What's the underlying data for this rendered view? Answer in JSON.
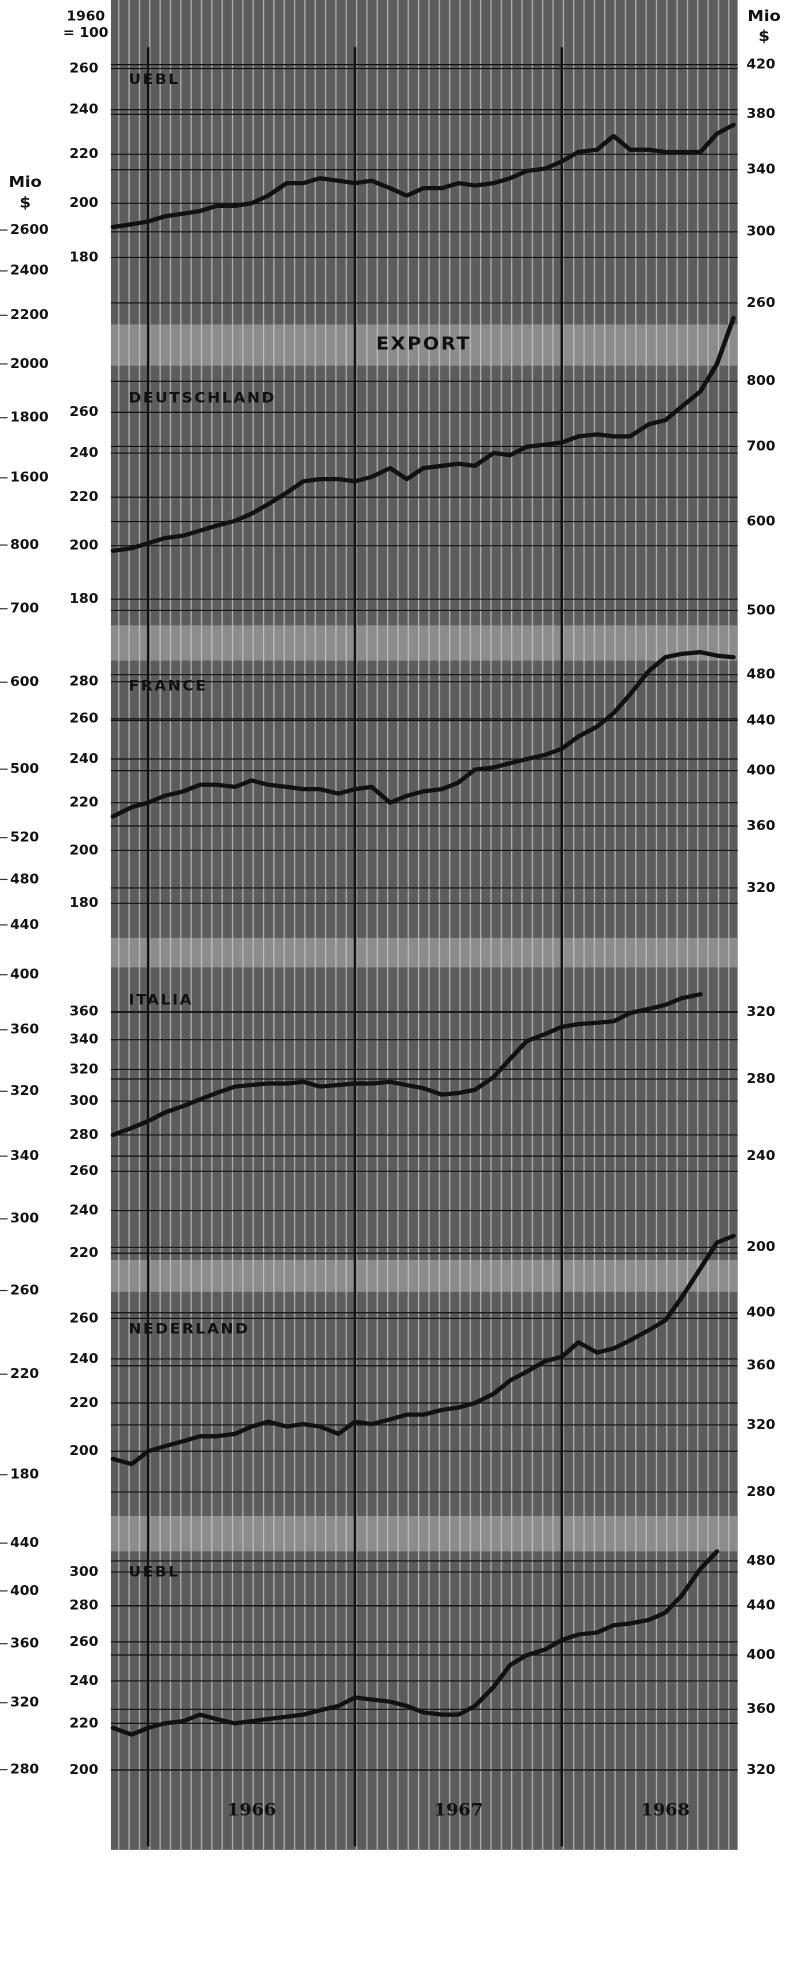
{
  "index_label": [
    "1960",
    "= 100"
  ],
  "right_unit": [
    "Mio",
    "$"
  ],
  "left_unit": [
    "Mio",
    "$"
  ],
  "section_label": "EXPORT",
  "left_axes": [
    {
      "lim": [
        1600,
        2600
      ],
      "ticks": [
        2600,
        2400,
        2200,
        2000,
        1800,
        1600
      ]
    },
    {
      "lim": [
        500,
        800
      ],
      "ticks": [
        800,
        700,
        600,
        500
      ]
    },
    {
      "lim": [
        320,
        520
      ],
      "ticks": [
        520,
        480,
        440,
        400,
        360,
        320
      ]
    },
    {
      "lim": [
        180,
        340
      ],
      "ticks": [
        340,
        300,
        260,
        220,
        180
      ]
    },
    {
      "lim": [
        280,
        440
      ],
      "ticks": [
        440,
        400,
        360,
        320,
        280
      ]
    }
  ],
  "chart_data": [
    {
      "type": "line",
      "title": "UEBL",
      "log_scale": true,
      "color": "#111111",
      "x": [
        1965.83,
        1965.92,
        1966.0,
        1966.08,
        1966.17,
        1966.25,
        1966.33,
        1966.42,
        1966.5,
        1966.58,
        1966.67,
        1966.75,
        1966.83,
        1966.92,
        1967.0,
        1967.08,
        1967.17,
        1967.25,
        1967.33,
        1967.42,
        1967.5,
        1967.58,
        1967.67,
        1967.75,
        1967.83,
        1967.92,
        1968.0,
        1968.08,
        1968.17,
        1968.25,
        1968.33,
        1968.42,
        1968.5,
        1968.58,
        1968.67,
        1968.75,
        1968.83
      ],
      "values": [
        191,
        192,
        193,
        195,
        196,
        197,
        199,
        199,
        200,
        203,
        208,
        208,
        210,
        209,
        208,
        209,
        206,
        203,
        206,
        206,
        208,
        207,
        208,
        210,
        213,
        214,
        217,
        221,
        222,
        228,
        222,
        222,
        221,
        221,
        221,
        229,
        233
      ],
      "xlim": [
        1965.82,
        1968.85
      ],
      "ylim": [
        158,
        271
      ],
      "yticks": [
        260,
        240,
        220,
        200,
        180
      ],
      "y2lim": [
        249,
        435
      ],
      "y2ticks": [
        420,
        380,
        340,
        300,
        260
      ]
    },
    {
      "type": "line",
      "title": "DEUTSCHLAND",
      "log_scale": true,
      "color": "#111111",
      "x": [
        1965.83,
        1965.92,
        1966.0,
        1966.08,
        1966.17,
        1966.25,
        1966.33,
        1966.42,
        1966.5,
        1966.58,
        1966.67,
        1966.75,
        1966.83,
        1966.92,
        1967.0,
        1967.08,
        1967.17,
        1967.25,
        1967.33,
        1967.42,
        1967.5,
        1967.58,
        1967.67,
        1967.75,
        1967.83,
        1967.92,
        1968.0,
        1968.08,
        1968.17,
        1968.25,
        1968.33,
        1968.42,
        1968.5,
        1968.58,
        1968.67,
        1968.75,
        1968.83
      ],
      "values": [
        198,
        199,
        201,
        203,
        204,
        206,
        208,
        210,
        213,
        217,
        222,
        227,
        228,
        228,
        227,
        229,
        233,
        228,
        233,
        234,
        235,
        234,
        240,
        239,
        243,
        244,
        245,
        248,
        249,
        248,
        248,
        254,
        256,
        263,
        271,
        286,
        313
      ],
      "xlim": [
        1965.82,
        1968.85
      ],
      "ylim": [
        171,
        285
      ],
      "yticks": [
        260,
        240,
        220,
        200,
        180
      ],
      "y2lim": [
        485,
        826
      ],
      "y2ticks": [
        800,
        700,
        600,
        500
      ]
    },
    {
      "type": "line",
      "title": "FRANCE",
      "log_scale": true,
      "color": "#111111",
      "x": [
        1965.83,
        1965.92,
        1966.0,
        1966.08,
        1966.17,
        1966.25,
        1966.33,
        1966.42,
        1966.5,
        1966.58,
        1966.67,
        1966.75,
        1966.83,
        1966.92,
        1967.0,
        1967.08,
        1967.17,
        1967.25,
        1967.33,
        1967.42,
        1967.5,
        1967.58,
        1967.67,
        1967.75,
        1967.83,
        1967.92,
        1968.0,
        1968.08,
        1968.17,
        1968.25,
        1968.33,
        1968.42,
        1968.5,
        1968.58,
        1968.67,
        1968.75,
        1968.83
      ],
      "values": [
        214,
        218,
        220,
        223,
        225,
        228,
        228,
        227,
        230,
        228,
        227,
        226,
        226,
        224,
        226,
        227,
        220,
        223,
        225,
        226,
        229,
        235,
        236,
        238,
        240,
        242,
        245,
        251,
        256,
        263,
        273,
        286,
        294,
        296,
        297,
        295,
        294
      ],
      "xlim": [
        1965.82,
        1968.85
      ],
      "ylim": [
        168,
        292
      ],
      "yticks": [
        280,
        260,
        240,
        220,
        200,
        180
      ],
      "y2lim": [
        291,
        493
      ],
      "y2ticks": [
        480,
        440,
        400,
        360,
        320
      ]
    },
    {
      "type": "line",
      "title": "ITALIA",
      "log_scale": true,
      "color": "#111111",
      "x": [
        1965.83,
        1965.92,
        1966.0,
        1966.08,
        1966.17,
        1966.25,
        1966.33,
        1966.42,
        1966.5,
        1966.58,
        1966.67,
        1966.75,
        1966.83,
        1966.92,
        1967.0,
        1967.08,
        1967.17,
        1967.25,
        1967.33,
        1967.42,
        1967.5,
        1967.58,
        1967.67,
        1967.75,
        1967.83,
        1967.92,
        1968.0,
        1968.08,
        1968.17,
        1968.25,
        1968.33,
        1968.42,
        1968.5,
        1968.58,
        1968.67,
        1968.75,
        1968.83
      ],
      "values": [
        280,
        284,
        288,
        293,
        297,
        301,
        305,
        309,
        310,
        311,
        311,
        312,
        309,
        310,
        311,
        311,
        312,
        310,
        308,
        304,
        305,
        307,
        315,
        327,
        339,
        344,
        349,
        351,
        352,
        353,
        359,
        362,
        365,
        370,
        373,
        null,
        null
      ],
      "xlim": [
        1965.82,
        1968.85
      ],
      "ylim": [
        217,
        394
      ],
      "yticks": [
        360,
        340,
        320,
        300,
        280,
        260,
        240,
        220
      ],
      "y2lim": [
        195,
        350
      ],
      "y2ticks": [
        320,
        280,
        240,
        200
      ]
    },
    {
      "type": "line",
      "title": "NEDERLAND",
      "log_scale": true,
      "color": "#111111",
      "x": [
        1965.83,
        1965.92,
        1966.0,
        1966.08,
        1966.17,
        1966.25,
        1966.33,
        1966.42,
        1966.5,
        1966.58,
        1966.67,
        1966.75,
        1966.83,
        1966.92,
        1967.0,
        1967.08,
        1967.17,
        1967.25,
        1967.33,
        1967.42,
        1967.5,
        1967.58,
        1967.67,
        1967.75,
        1967.83,
        1967.92,
        1968.0,
        1968.08,
        1968.17,
        1968.25,
        1968.33,
        1968.42,
        1968.5,
        1968.58,
        1968.67,
        1968.75,
        1968.83
      ],
      "values": [
        197,
        195,
        200,
        202,
        204,
        206,
        206,
        207,
        210,
        212,
        210,
        211,
        210,
        207,
        212,
        211,
        213,
        215,
        215,
        217,
        218,
        220,
        224,
        230,
        234,
        239,
        241,
        248,
        243,
        245,
        249,
        254,
        259,
        271,
        287,
        302,
        306
      ],
      "xlim": [
        1965.82,
        1968.85
      ],
      "ylim": [
        176,
        274
      ],
      "yticks": [
        260,
        240,
        220,
        200
      ],
      "y2lim": [
        267,
        417
      ],
      "y2ticks": [
        400,
        360,
        320,
        280
      ]
    },
    {
      "type": "line",
      "title": "UEBL",
      "log_scale": true,
      "color": "#111111",
      "x": [
        1965.83,
        1965.92,
        1966.0,
        1966.08,
        1966.17,
        1966.25,
        1966.33,
        1966.42,
        1966.5,
        1966.58,
        1966.67,
        1966.75,
        1966.83,
        1966.92,
        1967.0,
        1967.08,
        1967.17,
        1967.25,
        1967.33,
        1967.42,
        1967.5,
        1967.58,
        1967.67,
        1967.75,
        1967.83,
        1967.92,
        1968.0,
        1968.08,
        1968.17,
        1968.25,
        1968.33,
        1968.42,
        1968.5,
        1968.58,
        1968.67,
        1968.75,
        1968.83
      ],
      "values": [
        218,
        215,
        218,
        220,
        221,
        224,
        222,
        220,
        221,
        222,
        223,
        224,
        226,
        228,
        232,
        231,
        230,
        228,
        225,
        224,
        224,
        228,
        237,
        248,
        253,
        256,
        261,
        264,
        265,
        269,
        270,
        272,
        276,
        286,
        302,
        313,
        null
      ],
      "xlim": [
        1965.82,
        1968.85
      ],
      "ylim": [
        171,
        313
      ],
      "yticks": [
        300,
        280,
        260,
        240,
        220,
        200
      ],
      "y2lim": [
        276,
        489
      ],
      "y2ticks": [
        480,
        440,
        400,
        360,
        320
      ],
      "xticks": [
        {
          "value": 1966,
          "label": "1966"
        },
        {
          "value": 1967,
          "label": "1967"
        },
        {
          "value": 1968,
          "label": "1968"
        }
      ]
    }
  ]
}
